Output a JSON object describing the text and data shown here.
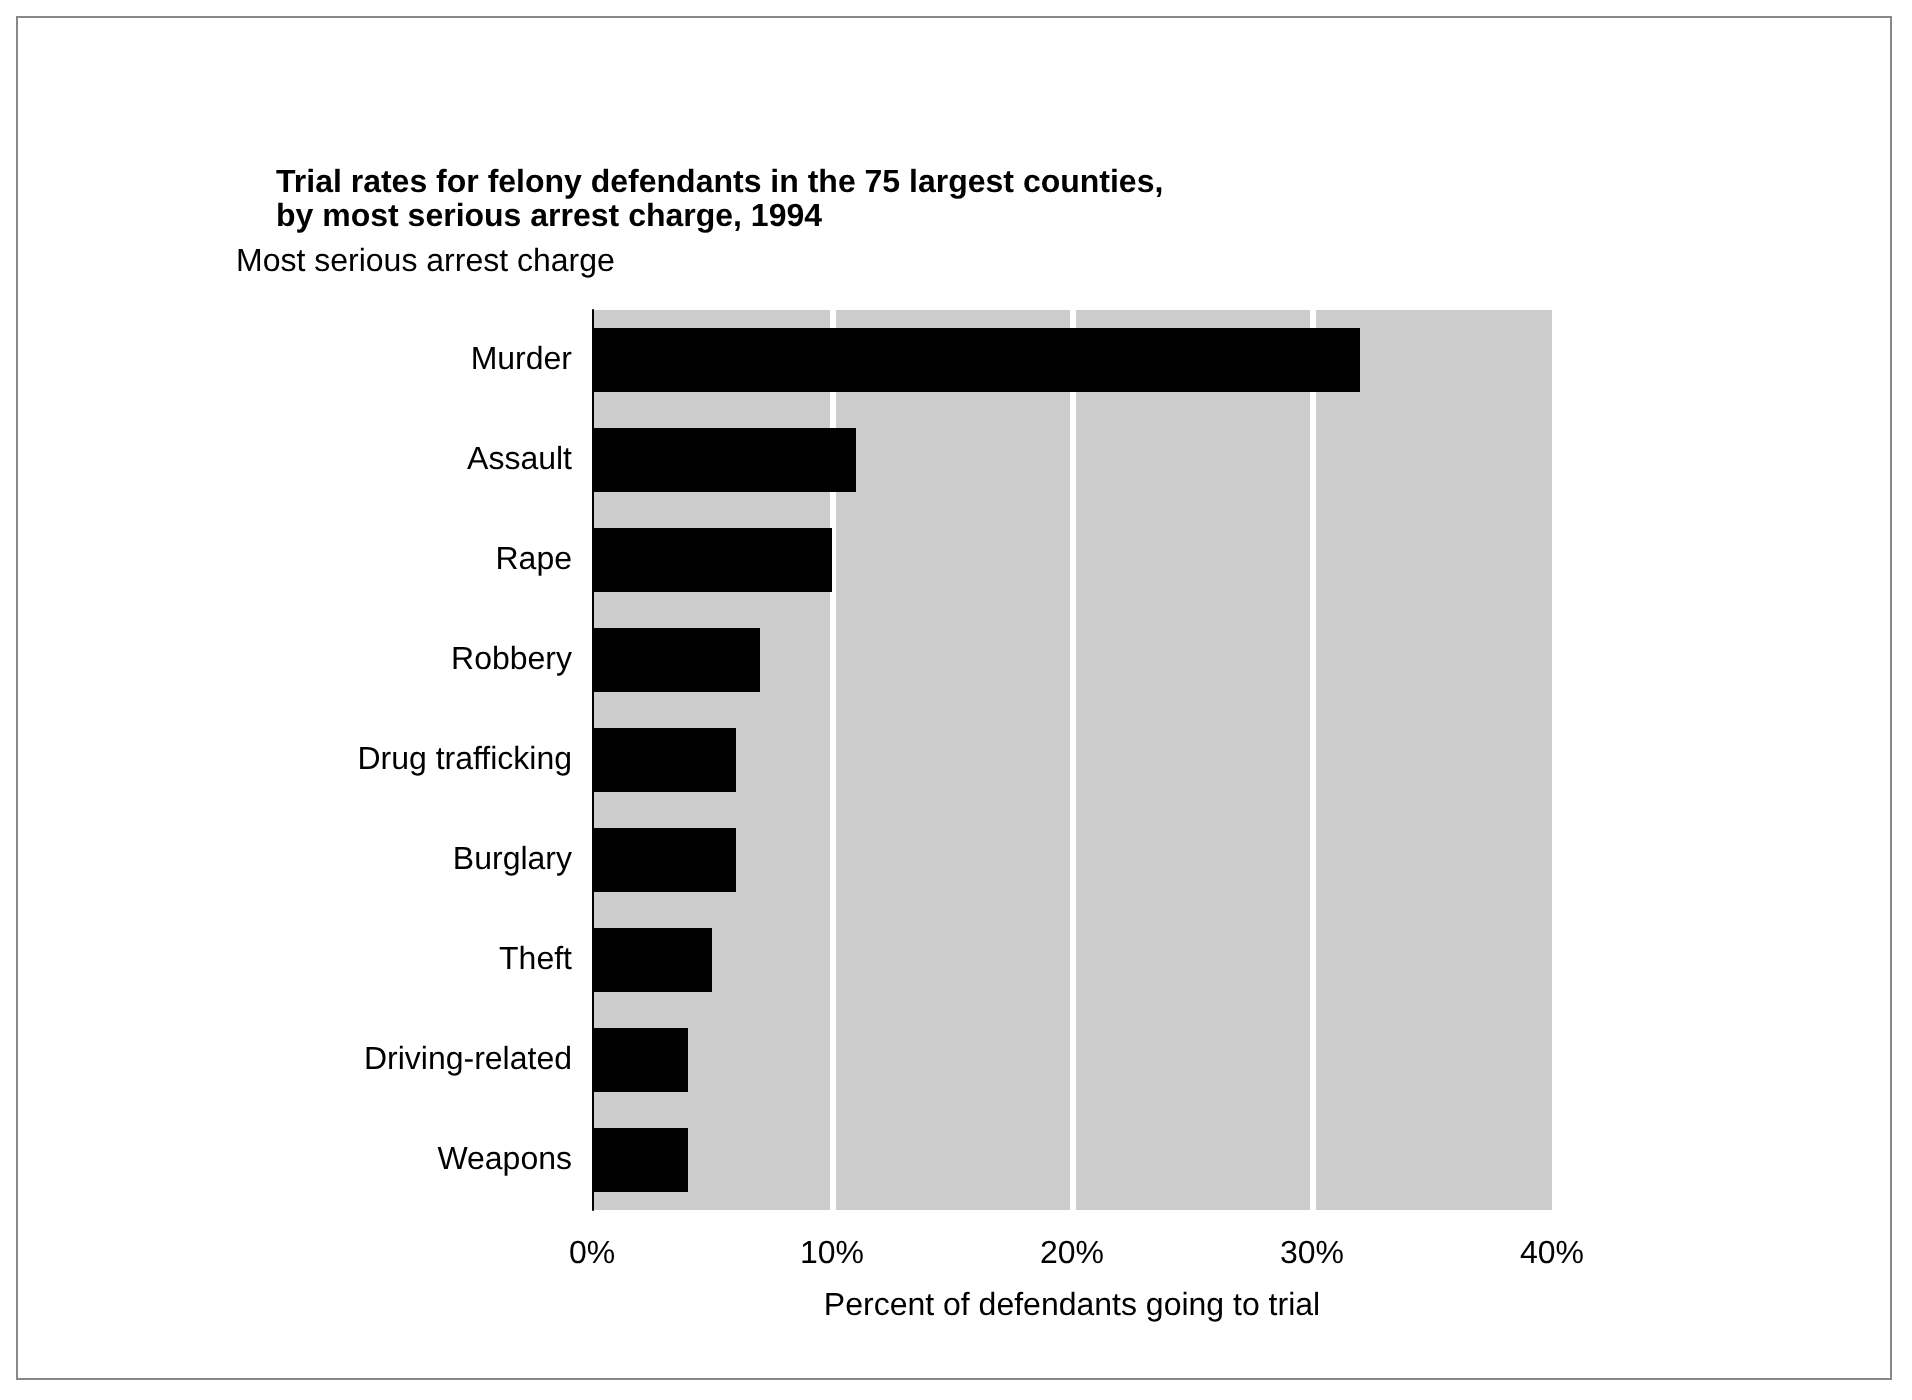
{
  "chart_data": {
    "type": "bar",
    "orientation": "horizontal",
    "title": "Trial rates for felony defendants in the 75 largest counties,\nby most serious arrest charge, 1994",
    "ylabel": "Most serious arrest charge",
    "xlabel": "Percent of defendants going to trial",
    "categories": [
      "Murder",
      "Assault",
      "Rape",
      "Robbery",
      "Drug trafficking",
      "Burglary",
      "Theft",
      "Driving-related",
      "Weapons"
    ],
    "values": [
      32,
      11,
      10,
      7,
      6,
      6,
      5,
      4,
      4
    ],
    "color": "#000000",
    "xlim": [
      0,
      40
    ],
    "xticks": [
      {
        "value": 0,
        "label": "0%"
      },
      {
        "value": 10,
        "label": "10%"
      },
      {
        "value": 20,
        "label": "20%"
      },
      {
        "value": 30,
        "label": "30%"
      },
      {
        "value": 40,
        "label": "40%"
      }
    ],
    "grid": "x"
  }
}
